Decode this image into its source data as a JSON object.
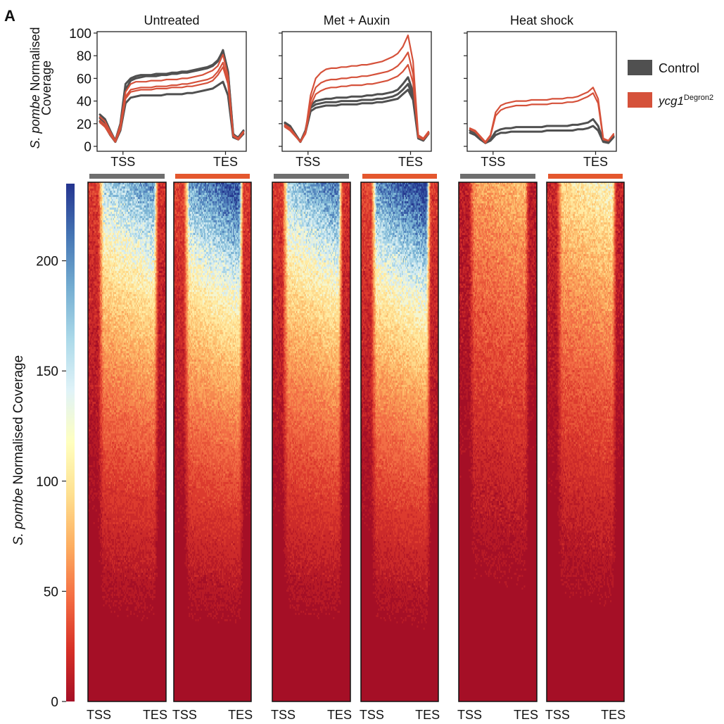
{
  "panel_letter": "A",
  "colors": {
    "control": "#505050",
    "treated": "#d5513a",
    "bar_control": "#6e6e6e",
    "bar_treated": "#e4572e",
    "colorbar_stops": [
      "#a50f26",
      "#d73027",
      "#f46d43",
      "#fdae61",
      "#fee090",
      "#ffffbf",
      "#e0f3f8",
      "#abd9e9",
      "#74add1",
      "#4575b4",
      "#24348f"
    ]
  },
  "legend": {
    "control_label": "Control",
    "treated_italic": "ycg1",
    "treated_super": "Degron2"
  },
  "profile_ylabel": {
    "line1_italic": "S. pombe",
    "line1_rest": " Normalised",
    "line2": "Coverage"
  },
  "heatmap_ylabel": {
    "italic": "S. pombe",
    "rest": " Normalised Coverage"
  },
  "chart_data": {
    "type": "line",
    "x_ticks": [
      "TSS",
      "TES"
    ],
    "ylim": [
      0,
      100
    ],
    "y_ticks": [
      0,
      20,
      40,
      60,
      80,
      100
    ],
    "x_points": 29,
    "panels": [
      {
        "title": "Untreated",
        "series": [
          {
            "group": "control",
            "values": [
              28,
              24,
              14,
              5,
              20,
              55,
              60,
              62,
              63,
              63,
              63,
              64,
              64,
              64,
              65,
              65,
              66,
              66,
              67,
              68,
              69,
              70,
              72,
              76,
              84,
              65,
              10,
              8,
              14
            ]
          },
          {
            "group": "control",
            "values": [
              25,
              21,
              12,
              4,
              18,
              50,
              58,
              60,
              61,
              62,
              62,
              62,
              63,
              63,
              64,
              64,
              65,
              65,
              66,
              67,
              68,
              69,
              71,
              75,
              85,
              66,
              11,
              7,
              13
            ]
          },
          {
            "group": "control",
            "values": [
              22,
              18,
              10,
              4,
              14,
              38,
              43,
              44,
              45,
              45,
              45,
              45,
              45,
              46,
              46,
              46,
              46,
              47,
              47,
              48,
              49,
              50,
              51,
              54,
              57,
              45,
              8,
              6,
              11
            ]
          },
          {
            "group": "treated",
            "values": [
              26,
              22,
              13,
              5,
              19,
              48,
              55,
              57,
              57,
              57,
              58,
              58,
              58,
              59,
              59,
              59,
              60,
              60,
              61,
              62,
              63,
              65,
              67,
              71,
              81,
              62,
              10,
              7,
              13
            ]
          },
          {
            "group": "treated",
            "values": [
              23,
              19,
              11,
              4,
              16,
              44,
              50,
              51,
              52,
              52,
              52,
              53,
              53,
              53,
              54,
              54,
              55,
              55,
              56,
              57,
              58,
              59,
              61,
              66,
              74,
              57,
              9,
              6,
              12
            ]
          },
          {
            "group": "treated",
            "values": [
              21,
              17,
              10,
              4,
              15,
              42,
              48,
              49,
              50,
              50,
              50,
              51,
              51,
              51,
              52,
              52,
              52,
              53,
              53,
              54,
              55,
              56,
              58,
              63,
              70,
              55,
              9,
              6,
              12
            ]
          }
        ]
      },
      {
        "title": "Met + Auxin",
        "series": [
          {
            "group": "control",
            "values": [
              20,
              17,
              11,
              4,
              13,
              34,
              37,
              38,
              39,
              39,
              39,
              40,
              40,
              40,
              40,
              41,
              41,
              41,
              42,
              42,
              43,
              44,
              46,
              50,
              55,
              44,
              8,
              6,
              12
            ]
          },
          {
            "group": "control",
            "values": [
              18,
              15,
              10,
              4,
              12,
              31,
              34,
              35,
              36,
              36,
              36,
              37,
              37,
              37,
              37,
              38,
              38,
              38,
              39,
              39,
              40,
              41,
              42,
              46,
              50,
              41,
              7,
              5,
              11
            ]
          },
          {
            "group": "control",
            "values": [
              21,
              18,
              11,
              4,
              14,
              36,
              40,
              41,
              42,
              42,
              43,
              43,
              43,
              44,
              44,
              44,
              45,
              45,
              46,
              46,
              47,
              48,
              50,
              55,
              61,
              48,
              8,
              6,
              12
            ]
          },
          {
            "group": "treated",
            "values": [
              19,
              16,
              10,
              4,
              13,
              45,
              60,
              65,
              68,
              69,
              69,
              70,
              70,
              71,
              71,
              72,
              72,
              73,
              74,
              75,
              77,
              79,
              82,
              88,
              98,
              75,
              10,
              7,
              13
            ]
          },
          {
            "group": "treated",
            "values": [
              18,
              15,
              10,
              4,
              12,
              40,
              52,
              56,
              58,
              59,
              59,
              60,
              60,
              61,
              61,
              62,
              62,
              63,
              64,
              65,
              66,
              68,
              71,
              76,
              83,
              64,
              9,
              6,
              12
            ]
          },
          {
            "group": "treated",
            "values": [
              17,
              14,
              9,
              4,
              11,
              36,
              46,
              49,
              51,
              52,
              52,
              53,
              53,
              54,
              54,
              54,
              55,
              55,
              56,
              57,
              58,
              60,
              62,
              66,
              72,
              56,
              8,
              6,
              11
            ]
          }
        ]
      },
      {
        "title": "Heat shock",
        "series": [
          {
            "group": "control",
            "values": [
              14,
              12,
              7,
              3,
              6,
              13,
              15,
              16,
              16,
              17,
              17,
              17,
              17,
              17,
              17,
              18,
              18,
              18,
              18,
              18,
              19,
              19,
              20,
              21,
              24,
              18,
              5,
              4,
              9
            ]
          },
          {
            "group": "control",
            "values": [
              12,
              10,
              6,
              3,
              5,
              10,
              12,
              12,
              13,
              13,
              13,
              13,
              13,
              13,
              13,
              14,
              14,
              14,
              14,
              14,
              14,
              15,
              15,
              16,
              18,
              14,
              4,
              3,
              8
            ]
          },
          {
            "group": "treated",
            "values": [
              16,
              14,
              9,
              4,
              10,
              30,
              36,
              38,
              39,
              40,
              40,
              40,
              41,
              41,
              41,
              41,
              42,
              42,
              42,
              43,
              43,
              44,
              46,
              48,
              52,
              42,
              7,
              5,
              11
            ]
          },
          {
            "group": "treated",
            "values": [
              15,
              13,
              8,
              3,
              9,
              27,
              32,
              34,
              35,
              36,
              36,
              36,
              37,
              37,
              37,
              37,
              38,
              38,
              38,
              39,
              39,
              40,
              42,
              44,
              47,
              38,
              6,
              5,
              10
            ]
          }
        ]
      }
    ],
    "heatmap": {
      "type": "heatmap",
      "colorbar_ticks": [
        0,
        50,
        100,
        150,
        200
      ],
      "colorbar_max": 235,
      "x_ticks": [
        "TSS",
        "TES"
      ],
      "columns": [
        {
          "condition": "Untreated",
          "group": "control",
          "intensity": 0.82
        },
        {
          "condition": "Untreated",
          "group": "treated",
          "intensity": 0.92
        },
        {
          "condition": "Met + Auxin",
          "group": "control",
          "intensity": 0.85
        },
        {
          "condition": "Met + Auxin",
          "group": "treated",
          "intensity": 0.95
        },
        {
          "condition": "Heat shock",
          "group": "control",
          "intensity": 0.45
        },
        {
          "condition": "Heat shock",
          "group": "treated",
          "intensity": 0.6
        }
      ]
    }
  }
}
